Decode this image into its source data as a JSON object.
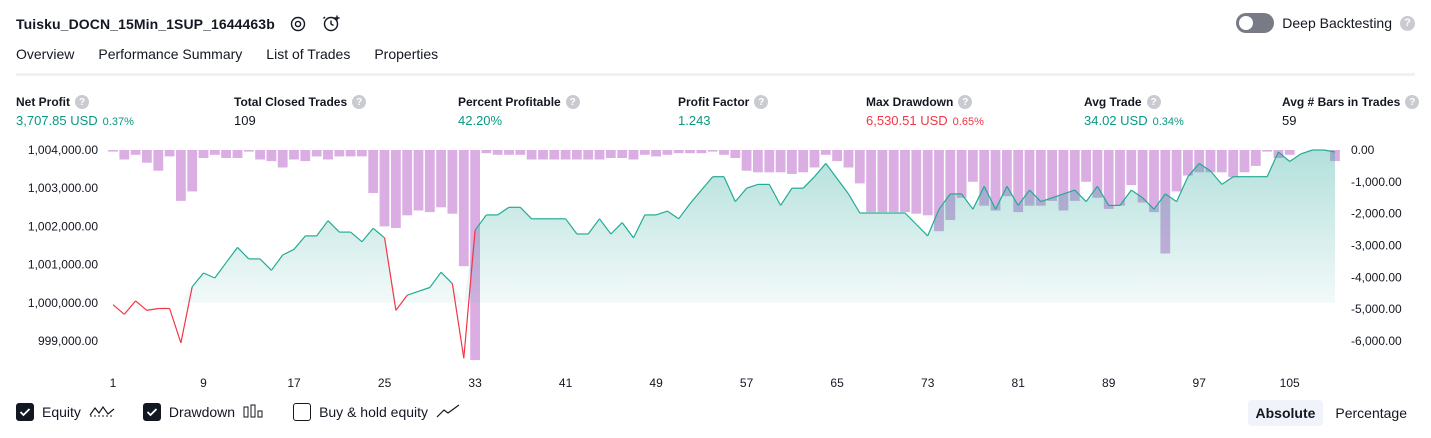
{
  "header": {
    "title": "Tuisku_DOCN_15Min_1SUP_1644463b",
    "deep_backtesting_label": "Deep Backtesting",
    "help_glyph": "?"
  },
  "tabs": [
    {
      "label": "Overview",
      "active": true
    },
    {
      "label": "Performance Summary",
      "active": false
    },
    {
      "label": "List of Trades",
      "active": false
    },
    {
      "label": "Properties",
      "active": false
    }
  ],
  "stats": {
    "net_profit": {
      "label": "Net Profit",
      "value": "3,707.85 USD",
      "pct": "0.37%"
    },
    "total_closed_trades": {
      "label": "Total Closed Trades",
      "value": "109"
    },
    "percent_profitable": {
      "label": "Percent Profitable",
      "value": "42.20%"
    },
    "profit_factor": {
      "label": "Profit Factor",
      "value": "1.243"
    },
    "max_drawdown": {
      "label": "Max Drawdown",
      "value": "6,530.51 USD",
      "pct": "0.65%"
    },
    "avg_trade": {
      "label": "Avg Trade",
      "value": "34.02 USD",
      "pct": "0.34%"
    },
    "avg_bars": {
      "label": "Avg # Bars in Trades",
      "value": "59"
    }
  },
  "legend": {
    "equity_label": "Equity",
    "drawdown_label": "Drawdown",
    "buy_hold_label": "Buy & hold equity",
    "equity_checked": true,
    "drawdown_checked": true,
    "buy_hold_checked": false
  },
  "modes": {
    "absolute_label": "Absolute",
    "percentage_label": "Percentage",
    "active": "Absolute"
  },
  "colors": {
    "profit": "#089981",
    "loss": "#f23645",
    "equity_line": "#22ab94",
    "equity_fill": "#26a69a",
    "drawdown_bar": "#ce93d8",
    "text": "#131722"
  },
  "chart_data": {
    "type": "line",
    "x_ticks": [
      "1",
      "9",
      "17",
      "25",
      "33",
      "41",
      "49",
      "57",
      "65",
      "73",
      "81",
      "89",
      "97",
      "105"
    ],
    "y_left_ticks": [
      "1,004,000.00",
      "1,003,000.00",
      "1,002,000.00",
      "1,001,000.00",
      "1,000,000.00",
      "999,000.00"
    ],
    "y_right_ticks": [
      "0.00",
      "-1,000.00",
      "-2,000.00",
      "-3,000.00",
      "-4,000.00",
      "-5,000.00",
      "-6,000.00"
    ],
    "ylim_left": [
      998600,
      1004000
    ],
    "ylim_right": [
      -6600,
      0
    ],
    "baseline": 1000000,
    "series": [
      {
        "name": "Equity",
        "x": [
          1,
          2,
          3,
          4,
          5,
          6,
          7,
          8,
          9,
          10,
          11,
          12,
          13,
          14,
          15,
          16,
          17,
          18,
          19,
          20,
          21,
          22,
          23,
          24,
          25,
          26,
          27,
          28,
          29,
          30,
          31,
          32,
          33,
          34,
          35,
          36,
          37,
          38,
          39,
          40,
          41,
          42,
          43,
          44,
          45,
          46,
          47,
          48,
          49,
          50,
          51,
          52,
          53,
          54,
          55,
          56,
          57,
          58,
          59,
          60,
          61,
          62,
          63,
          64,
          65,
          66,
          67,
          68,
          69,
          70,
          71,
          72,
          73,
          74,
          75,
          76,
          77,
          78,
          79,
          80,
          81,
          82,
          83,
          84,
          85,
          86,
          87,
          88,
          89,
          90,
          91,
          92,
          93,
          94,
          95,
          96,
          97,
          98,
          99,
          100,
          101,
          102,
          103,
          104,
          105,
          106,
          107,
          108,
          109
        ],
        "values": [
          999950,
          999700,
          1000050,
          999800,
          999850,
          999850,
          998950,
          1000420,
          1000780,
          1000650,
          1001050,
          1001450,
          1001150,
          1001150,
          1000850,
          1001250,
          1001400,
          1001750,
          1001750,
          1002150,
          1001850,
          1001850,
          1001600,
          1001950,
          1001700,
          999800,
          1000200,
          1000300,
          1000400,
          1000800,
          1000500,
          998550,
          1001900,
          1002300,
          1002300,
          1002500,
          1002500,
          1002200,
          1002200,
          1002200,
          1002200,
          1001800,
          1001800,
          1002200,
          1001800,
          1002100,
          1001700,
          1002300,
          1002300,
          1002400,
          1002200,
          1002600,
          1002950,
          1003300,
          1003300,
          1002650,
          1003000,
          1003100,
          1003100,
          1002550,
          1003000,
          1003000,
          1003300,
          1003650,
          1003250,
          1002850,
          1002350,
          1002350,
          1002350,
          1002350,
          1002350,
          1002050,
          1001750,
          1002450,
          1002850,
          1002850,
          1002450,
          1003050,
          1002450,
          1003050,
          1002550,
          1002950,
          1002650,
          1002750,
          1002850,
          1002950,
          1002650,
          1003050,
          1002550,
          1002550,
          1002950,
          1002750,
          1002450,
          1002850,
          1002650,
          1003300,
          1003650,
          1003450,
          1003100,
          1003300,
          1003300,
          1003300,
          1003300,
          1003950,
          1003700,
          1003900,
          1004000,
          1004000,
          1003950
        ]
      },
      {
        "name": "Drawdown",
        "x": [
          1,
          2,
          3,
          4,
          5,
          6,
          7,
          8,
          9,
          10,
          11,
          12,
          13,
          14,
          15,
          16,
          17,
          18,
          19,
          20,
          21,
          22,
          23,
          24,
          25,
          26,
          27,
          28,
          29,
          30,
          31,
          32,
          33,
          34,
          35,
          36,
          37,
          38,
          39,
          40,
          41,
          42,
          43,
          44,
          45,
          46,
          47,
          48,
          49,
          50,
          51,
          52,
          53,
          54,
          55,
          56,
          57,
          58,
          59,
          60,
          61,
          62,
          63,
          64,
          65,
          66,
          67,
          68,
          69,
          70,
          71,
          72,
          73,
          74,
          75,
          76,
          77,
          78,
          79,
          80,
          81,
          82,
          83,
          84,
          85,
          86,
          87,
          88,
          89,
          90,
          91,
          92,
          93,
          94,
          95,
          96,
          97,
          98,
          99,
          100,
          101,
          102,
          103,
          104,
          105,
          106,
          107,
          108,
          109
        ],
        "values": [
          -50,
          -300,
          -150,
          -400,
          -650,
          -200,
          -1600,
          -1300,
          -250,
          -150,
          -250,
          -250,
          -50,
          -300,
          -350,
          -550,
          -300,
          -350,
          -200,
          -300,
          -200,
          -200,
          -200,
          -1350,
          -2400,
          -2450,
          -2050,
          -1900,
          -1950,
          -1800,
          -2000,
          -3650,
          -6600,
          -100,
          -150,
          -150,
          -150,
          -300,
          -300,
          -300,
          -300,
          -300,
          -300,
          -300,
          -250,
          -250,
          -300,
          -150,
          -200,
          -150,
          -100,
          -100,
          -100,
          -50,
          -150,
          -250,
          -650,
          -700,
          -700,
          -700,
          -750,
          -700,
          -550,
          -150,
          -350,
          -550,
          -1050,
          -1950,
          -1950,
          -1950,
          -1950,
          -2000,
          -2050,
          -2550,
          -2200,
          -1500,
          -1000,
          -1750,
          -1900,
          -1450,
          -1950,
          -1750,
          -1750,
          -1600,
          -1900,
          -1600,
          -1000,
          -1500,
          -1850,
          -1750,
          -1100,
          -1650,
          -1950,
          -3250,
          -1300,
          -800,
          -700,
          -700,
          -700,
          -850,
          -700,
          -500,
          -50,
          -250,
          -150,
          0,
          0,
          0,
          -350
        ]
      }
    ]
  }
}
